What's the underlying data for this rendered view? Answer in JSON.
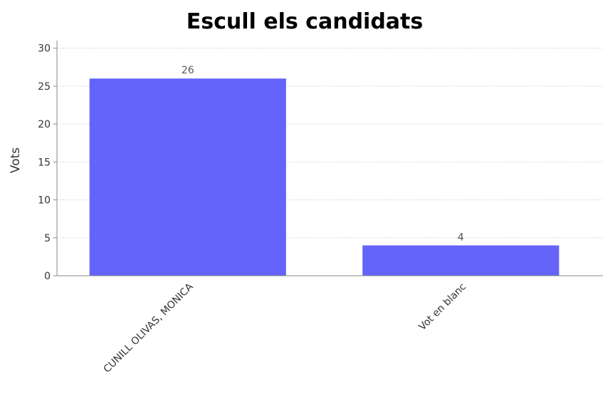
{
  "chart_data": {
    "type": "bar",
    "title": "Escull els candidats",
    "xlabel": "",
    "ylabel": "Vots",
    "categories": [
      "CUNILL OLIVAS, MONICA",
      "Vot en blanc"
    ],
    "values": [
      26,
      4
    ],
    "data_labels": [
      "26",
      "4"
    ],
    "ylim": [
      0,
      31
    ],
    "yticks": [
      0,
      5,
      10,
      15,
      20,
      25,
      30
    ],
    "grid": true,
    "legend": "none",
    "bar_color": "#6464fa",
    "gridline_color": "#d8d8d8"
  }
}
